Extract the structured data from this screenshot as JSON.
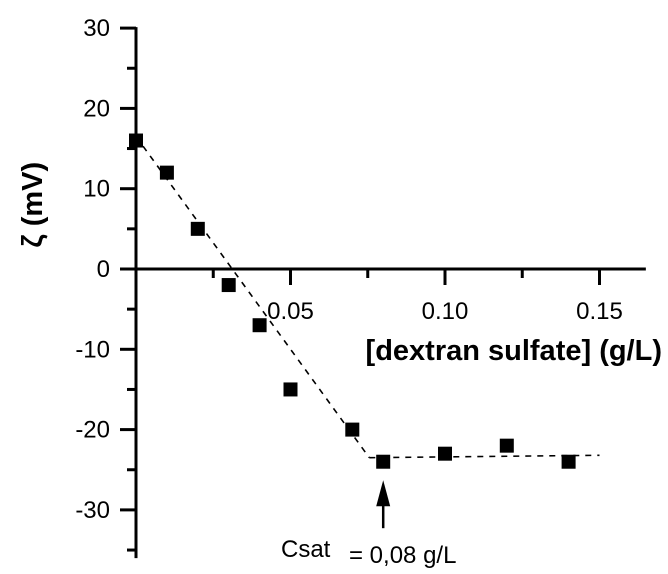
{
  "chart_data": {
    "type": "scatter",
    "title": "",
    "xlabel": "[dextran sulfate] (g/L)",
    "ylabel": "ζ (mV)",
    "xlim": [
      0,
      0.165
    ],
    "ylim": [
      -36,
      30
    ],
    "x_ticks": [
      {
        "value": 0.05,
        "label": "0.05"
      },
      {
        "value": 0.1,
        "label": "0.10"
      },
      {
        "value": 0.15,
        "label": "0.15"
      }
    ],
    "y_ticks": [
      {
        "value": 30,
        "label": "30"
      },
      {
        "value": 20,
        "label": "20"
      },
      {
        "value": 10,
        "label": "10"
      },
      {
        "value": 0,
        "label": "0"
      },
      {
        "value": -10,
        "label": "-10"
      },
      {
        "value": -20,
        "label": "-20"
      },
      {
        "value": -30,
        "label": "-30"
      }
    ],
    "series": [
      {
        "marker": "square",
        "color": "#000000",
        "points": [
          {
            "x": 0.0,
            "y": 16
          },
          {
            "x": 0.01,
            "y": 12
          },
          {
            "x": 0.02,
            "y": 5
          },
          {
            "x": 0.03,
            "y": -2
          },
          {
            "x": 0.04,
            "y": -7
          },
          {
            "x": 0.05,
            "y": -15
          },
          {
            "x": 0.07,
            "y": -20
          },
          {
            "x": 0.08,
            "y": -24
          },
          {
            "x": 0.1,
            "y": -23
          },
          {
            "x": 0.12,
            "y": -22
          },
          {
            "x": 0.14,
            "y": -24
          }
        ]
      }
    ],
    "fit_lines": [
      {
        "style": "dashed",
        "points": [
          [
            0.0,
            16.5
          ],
          [
            0.0755,
            -23.5
          ]
        ]
      },
      {
        "style": "dashed",
        "points": [
          [
            0.0755,
            -23.5
          ],
          [
            0.15,
            -23.2
          ]
        ]
      }
    ],
    "annotation": {
      "text_main": "Csat",
      "text_value": "= 0,08 g/L",
      "arrow_to": {
        "x": 0.08,
        "y": -26.3
      }
    },
    "grid": false,
    "legend": "none"
  }
}
